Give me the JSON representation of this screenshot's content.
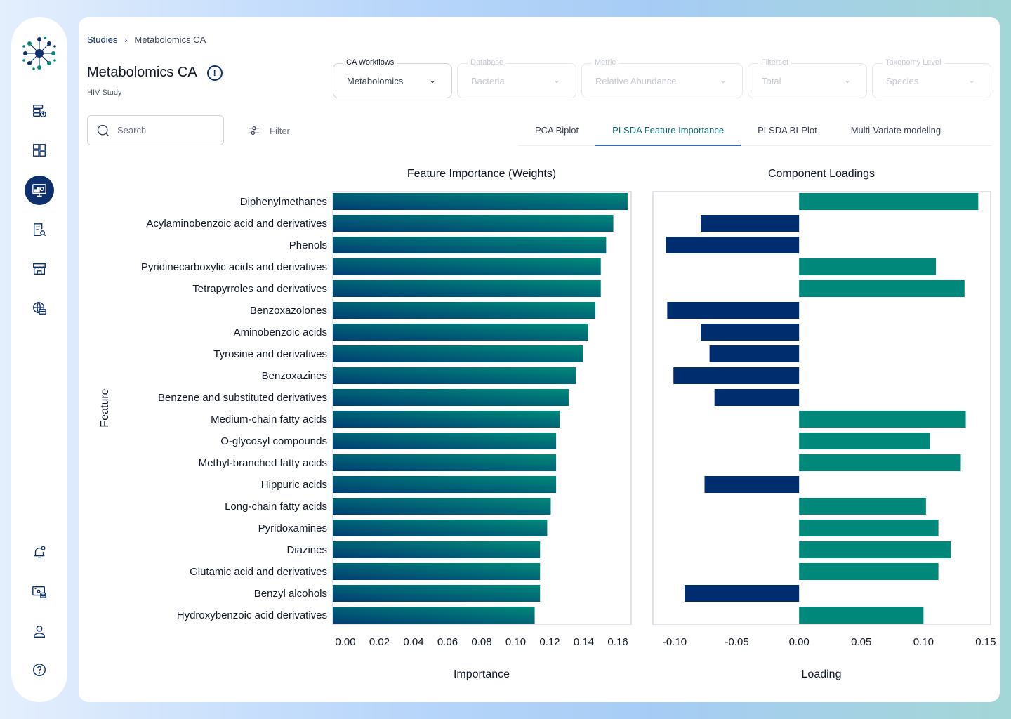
{
  "sidebar": {
    "logo": "network-logo",
    "items": [
      {
        "name": "data-upload",
        "icon": "database-upload-icon",
        "active": false
      },
      {
        "name": "dashboard",
        "icon": "dashboard-grid-icon",
        "active": false
      },
      {
        "name": "analytics",
        "icon": "monitor-chart-icon",
        "active": true
      },
      {
        "name": "report-search",
        "icon": "document-search-icon",
        "active": false
      },
      {
        "name": "store",
        "icon": "storefront-icon",
        "active": false
      },
      {
        "name": "global",
        "icon": "globe-card-icon",
        "active": false
      }
    ],
    "bottom_items": [
      {
        "name": "notifications",
        "icon": "bell-icon"
      },
      {
        "name": "data-settings",
        "icon": "monitor-database-icon"
      },
      {
        "name": "profile",
        "icon": "user-icon"
      },
      {
        "name": "help",
        "icon": "help-circle-icon"
      }
    ]
  },
  "breadcrumb": {
    "root": "Studies",
    "separator": "›",
    "current": "Metabolomics CA"
  },
  "header": {
    "title": "Metabolomics CA",
    "subtitle": "HIV Study"
  },
  "search": {
    "placeholder": "Search",
    "value": ""
  },
  "filter_label": "Filter",
  "dropdowns": [
    {
      "label": "CA Workflows",
      "value": "Metabolomics",
      "disabled": false
    },
    {
      "label": "Database",
      "value": "Bacteria",
      "disabled": true
    },
    {
      "label": "Metric",
      "value": "Relative Abundance",
      "disabled": true
    },
    {
      "label": "Filterset",
      "value": "Total",
      "disabled": true
    },
    {
      "label": "Taxonomy Level",
      "value": "Species",
      "disabled": true
    }
  ],
  "tabs": [
    {
      "label": "PCA Biplot",
      "active": false
    },
    {
      "label": "PLSDA Feature Importance",
      "active": true
    },
    {
      "label": "PLSDA BI-Plot",
      "active": false
    },
    {
      "label": "Multi-Variate modeling",
      "active": false
    }
  ],
  "colors": {
    "navy": "#002d6e",
    "teal": "#00897a",
    "accent": "#0d2f6b"
  },
  "chart_data": [
    {
      "type": "bar",
      "orientation": "horizontal",
      "title": "Feature Importance (Weights)",
      "xlabel": "Importance",
      "ylabel": "Feature",
      "xlim": [
        0,
        0.167
      ],
      "xticks": [
        "0.00",
        "0.02",
        "0.04",
        "0.06",
        "0.08",
        "0.10",
        "0.12",
        "0.14",
        "0.16"
      ],
      "xtick_values": [
        0,
        0.02,
        0.04,
        0.06,
        0.08,
        0.1,
        0.12,
        0.14,
        0.16
      ],
      "categories": [
        "Diphenylmethanes",
        "Acylaminobenzoic acid and derivatives",
        "Phenols",
        "Pyridinecarboxylic acids and derivatives",
        "Tetrapyrroles and derivatives",
        "Benzoxazolones",
        "Aminobenzoic acids",
        "Tyrosine and derivatives",
        "Benzoxazines",
        "Benzene and substituted derivatives",
        "Medium-chain fatty acids",
        "O-glycosyl compounds",
        "Methyl-branched fatty acids",
        "Hippuric acids",
        "Long-chain fatty acids",
        "Pyridoxamines",
        "Diazines",
        "Glutamic acid and derivatives",
        "Benzyl alcohols",
        "Hydroxybenzoic acid derivatives"
      ],
      "values": [
        0.165,
        0.157,
        0.153,
        0.15,
        0.15,
        0.147,
        0.143,
        0.14,
        0.136,
        0.132,
        0.127,
        0.125,
        0.125,
        0.125,
        0.122,
        0.12,
        0.116,
        0.116,
        0.116,
        0.113
      ]
    },
    {
      "type": "bar",
      "orientation": "horizontal",
      "title": "Component Loadings",
      "xlabel": "Loading",
      "xlim": [
        -0.1175,
        0.154
      ],
      "xticks": [
        "-0.10",
        "-0.05",
        "0.00",
        "0.05",
        "0.10",
        "0.15"
      ],
      "xtick_values": [
        -0.1,
        -0.05,
        0,
        0.05,
        0.1,
        0.15
      ],
      "categories": [
        "Diphenylmethanes",
        "Acylaminobenzoic acid and derivatives",
        "Phenols",
        "Pyridinecarboxylic acids and derivatives",
        "Tetrapyrroles and derivatives",
        "Benzoxazolones",
        "Aminobenzoic acids",
        "Tyrosine and derivatives",
        "Benzoxazines",
        "Benzene and substituted derivatives",
        "Medium-chain fatty acids",
        "O-glycosyl compounds",
        "Methyl-branched fatty acids",
        "Hippuric acids",
        "Long-chain fatty acids",
        "Pyridoxamines",
        "Diazines",
        "Glutamic acid and derivatives",
        "Benzyl alcohols",
        "Hydroxybenzoic acid derivatives"
      ],
      "values": [
        0.144,
        -0.079,
        -0.107,
        0.11,
        0.133,
        -0.106,
        -0.079,
        -0.072,
        -0.101,
        -0.068,
        0.134,
        0.105,
        0.13,
        -0.076,
        0.102,
        0.112,
        0.122,
        0.112,
        -0.092,
        0.1
      ],
      "positive_color": "#00897a",
      "negative_color": "#002d6e"
    }
  ]
}
